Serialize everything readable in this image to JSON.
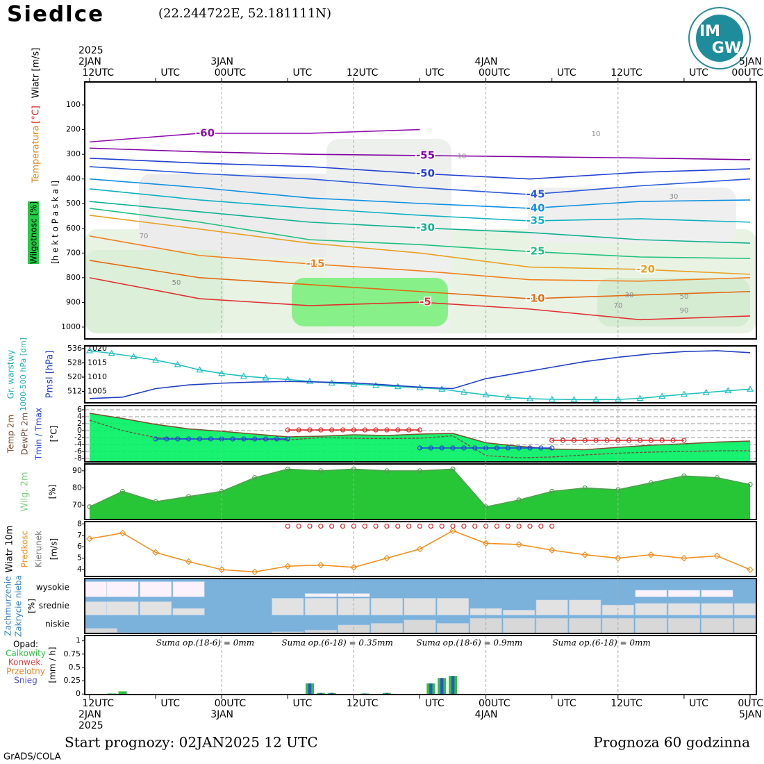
{
  "header": {
    "title": "Siedlce",
    "coords": "(22.244722E, 52.181111N)",
    "logo": [
      "IM",
      "GW"
    ]
  },
  "top_axis": [
    {
      "hour": 0,
      "labels": [
        "2025",
        "2JAN",
        "12UTC"
      ]
    },
    {
      "hour": 6,
      "labels": [
        "UTC"
      ]
    },
    {
      "hour": 12,
      "labels": [
        "3JAN",
        "00UTC"
      ]
    },
    {
      "hour": 18,
      "labels": [
        "UTC"
      ]
    },
    {
      "hour": 24,
      "labels": [
        "12UTC"
      ]
    },
    {
      "hour": 30,
      "labels": [
        "UTC"
      ]
    },
    {
      "hour": 36,
      "labels": [
        "4JAN",
        "00UTC"
      ]
    },
    {
      "hour": 42,
      "labels": [
        "UTC"
      ]
    },
    {
      "hour": 48,
      "labels": [
        "12UTC"
      ]
    },
    {
      "hour": 54,
      "labels": [
        "UTC"
      ]
    },
    {
      "hour": 60,
      "labels": [
        "5JAN",
        "00UTC"
      ]
    }
  ],
  "bottom_axis": [
    {
      "hour": 0,
      "labels": [
        "12UTC",
        "2JAN",
        "2025"
      ]
    },
    {
      "hour": 6,
      "labels": [
        "UTC"
      ]
    },
    {
      "hour": 12,
      "labels": [
        "00UTC",
        "3JAN"
      ]
    },
    {
      "hour": 18,
      "labels": [
        "UTC"
      ]
    },
    {
      "hour": 24,
      "labels": [
        "12UTC"
      ]
    },
    {
      "hour": 30,
      "labels": [
        "UTC"
      ]
    },
    {
      "hour": 36,
      "labels": [
        "00UTC",
        "4JAN"
      ]
    },
    {
      "hour": 42,
      "labels": [
        "UTC"
      ]
    },
    {
      "hour": 48,
      "labels": [
        "12UTC"
      ]
    },
    {
      "hour": 54,
      "labels": [
        "UTC"
      ]
    },
    {
      "hour": 60,
      "labels": [
        "0UTC",
        "5JAN"
      ]
    }
  ],
  "chart_data": [
    {
      "type": "contour",
      "labels": [
        "Wiatr [m/s]",
        "[°C]",
        "Temperatura",
        "Wilgotnosc [%]",
        "[h e k t o P a s k a l]"
      ],
      "ylim": [
        1048,
        7
      ],
      "yticks": [
        100,
        200,
        300,
        400,
        500,
        600,
        700,
        800,
        900,
        1000
      ],
      "x": [
        0,
        10,
        20,
        30,
        40,
        50,
        60
      ],
      "series": [
        {
          "name": "-60",
          "color": "#9010b0",
          "values": [
            250,
            215,
            215,
            200,
            null,
            null,
            null
          ]
        },
        {
          "name": "-55",
          "color": "#8000a0",
          "values": [
            275,
            290,
            300,
            305,
            310,
            315,
            322
          ]
        },
        {
          "name": "-50",
          "color": "#2040d0",
          "values": [
            316,
            336,
            350,
            378,
            400,
            373,
            359
          ]
        },
        {
          "name": "-45",
          "color": "#2858d8",
          "values": [
            350,
            378,
            400,
            435,
            463,
            428,
            400
          ]
        },
        {
          "name": "-40",
          "color": "#1090e0",
          "values": [
            400,
            435,
            477,
            499,
            519,
            491,
            485
          ]
        },
        {
          "name": "-35",
          "color": "#10b0c0",
          "values": [
            440,
            485,
            519,
            547,
            570,
            561,
            575
          ]
        },
        {
          "name": "-30",
          "color": "#10b090",
          "values": [
            491,
            533,
            575,
            598,
            617,
            646,
            660
          ]
        },
        {
          "name": "-25",
          "color": "#20c080",
          "values": [
            519,
            575,
            646,
            666,
            694,
            716,
            722
          ]
        },
        {
          "name": "-20",
          "color": "#e8a020",
          "values": [
            547,
            603,
            660,
            700,
            757,
            766,
            786
          ]
        },
        {
          "name": "-15",
          "color": "#f08020",
          "values": [
            631,
            710,
            744,
            772,
            808,
            814,
            800
          ]
        },
        {
          "name": "-10",
          "color": "#e06a10",
          "values": [
            730,
            800,
            828,
            856,
            885,
            870,
            856
          ]
        },
        {
          "name": "-5",
          "color": "#e03030",
          "values": [
            800,
            885,
            913,
            899,
            927,
            970,
            955
          ]
        }
      ],
      "humidity_labels": [
        "70",
        "50",
        "10",
        "10",
        "30",
        "30",
        "50",
        "70",
        "90"
      ]
    },
    {
      "type": "line",
      "labels": [
        "Gr. warstwy",
        "1000-500 hPa [dm]",
        "Pmsl [hPa]"
      ],
      "ylim": [
        505.5,
        537.5
      ],
      "yticks": [
        512,
        520,
        528,
        536
      ],
      "y2lim": [
        1001,
        1021
      ],
      "y2ticks": [
        1005,
        1010,
        1015,
        1020
      ],
      "x": [
        0,
        3,
        6,
        9,
        12,
        15,
        18,
        21,
        24,
        27,
        30,
        33,
        36,
        39,
        42,
        45,
        48,
        51,
        54,
        57,
        60
      ],
      "series": [
        {
          "color": "#20c0c0",
          "marker": "triangle",
          "x": [
            0,
            2,
            4,
            6,
            8,
            10,
            12,
            14,
            16,
            18,
            20,
            22,
            24,
            26,
            28,
            30,
            32,
            34,
            36,
            38,
            40,
            42,
            44,
            46,
            48,
            50,
            52,
            54,
            56,
            58,
            60
          ],
          "values": [
            534.8,
            533.3,
            531.5,
            529.5,
            527,
            524,
            522,
            520.5,
            519.5,
            518.6,
            517.6,
            516.6,
            516,
            515.3,
            514.6,
            514,
            513.2,
            511.5,
            510,
            508.6,
            507.8,
            507.5,
            507.3,
            507.3,
            507.4,
            508,
            509.2,
            510.3,
            511.3,
            512.3,
            513.2
          ]
        },
        {
          "color": "#2040c0",
          "axis": "y2",
          "values": [
            1002.5,
            1003,
            1006,
            1007.3,
            1007.9,
            1008.3,
            1008.5,
            1008.3,
            1008,
            1007.3,
            1006.5,
            1006,
            1009.5,
            1011.5,
            1013.5,
            1015.5,
            1017,
            1018.2,
            1019,
            1019.3,
            1018.6
          ]
        }
      ]
    },
    {
      "type": "line",
      "labels": [
        "Temp 2m",
        "DewPt 2m",
        "Tmin / Tmax",
        "[°C]"
      ],
      "ylim": [
        -9,
        7.2
      ],
      "yticks": [
        6,
        4,
        2,
        0,
        -2,
        -4,
        -6,
        -8
      ],
      "grid": true,
      "x": [
        0,
        3,
        6,
        9,
        12,
        15,
        18,
        21,
        24,
        27,
        30,
        33,
        36,
        39,
        42,
        45,
        48,
        51,
        54,
        57,
        60
      ],
      "series": [
        {
          "color": "#7a5030",
          "fill": "#00f060",
          "values": [
            5,
            3.5,
            1.8,
            0.5,
            -0.2,
            -1,
            -1.8,
            -1.6,
            -1.2,
            -1.4,
            -1,
            -0.8,
            -3.5,
            -4.5,
            -5.3,
            -5.5,
            -4.8,
            -4.2,
            -3.8,
            -3.3,
            -3
          ]
        },
        {
          "color": "#705040",
          "dash": true,
          "values": [
            3,
            0,
            -2,
            -2.4,
            -2.5,
            -2.6,
            -2.7,
            -2,
            -2.2,
            -2.3,
            -2.2,
            -1.5,
            -7.2,
            -7.8,
            -7.6,
            -7,
            -6.5,
            -6.2,
            -6,
            -5.8,
            -5.8
          ]
        },
        {
          "color": "#e02020",
          "marker": "circle",
          "x": [
            18,
            19,
            20,
            21,
            22,
            23,
            24,
            25,
            26,
            27,
            28,
            29,
            30
          ],
          "values": [
            0.2,
            0.2,
            0.2,
            0.2,
            0.2,
            0.2,
            0.2,
            0.2,
            0.2,
            0.2,
            0.2,
            0.2,
            0.2
          ]
        },
        {
          "color": "#e02020",
          "marker": "circle",
          "x": [
            42,
            43,
            44,
            45,
            46,
            47,
            48,
            49,
            50,
            51,
            52,
            53,
            54
          ],
          "values": [
            -2.8,
            -2.8,
            -2.8,
            -2.8,
            -2.8,
            -2.8,
            -2.8,
            -2.8,
            -2.8,
            -2.8,
            -2.8,
            -2.8,
            -2.8
          ]
        },
        {
          "color": "#2040e0",
          "marker": "circle",
          "x": [
            6,
            7,
            8,
            9,
            10,
            11,
            12,
            13,
            14,
            15,
            16,
            17,
            18
          ],
          "values": [
            -2.4,
            -2.4,
            -2.4,
            -2.4,
            -2.4,
            -2.4,
            -2.4,
            -2.4,
            -2.4,
            -2.4,
            -2.4,
            -2.4,
            -2.4
          ]
        },
        {
          "color": "#2040e0",
          "marker": "circle",
          "x": [
            30,
            31,
            32,
            33,
            34,
            35,
            36,
            37,
            38,
            39,
            40,
            41,
            42
          ],
          "values": [
            -5,
            -5,
            -5,
            -5,
            -5,
            -5,
            -5,
            -5,
            -5,
            -5,
            -5,
            -5,
            -5
          ]
        }
      ]
    },
    {
      "type": "line",
      "labels": [
        "Wilg. 2m",
        "[%]"
      ],
      "ylim": [
        61.6,
        94
      ],
      "yticks": [
        70,
        80,
        90
      ],
      "x": [
        0,
        3,
        6,
        9,
        12,
        15,
        18,
        21,
        24,
        27,
        30,
        33,
        36,
        39,
        42,
        45,
        48,
        51,
        54,
        57,
        60
      ],
      "series": [
        {
          "color": "#50a050",
          "fill": "#10c020",
          "marker": "circle",
          "values": [
            69,
            78,
            72,
            75,
            78,
            86,
            91,
            90,
            91,
            90,
            90,
            91,
            69,
            73,
            78,
            80,
            79,
            83,
            87,
            86,
            82
          ]
        }
      ]
    },
    {
      "type": "line",
      "labels": [
        "Wiatr 10m",
        "Predkosc",
        "Kierunek",
        "[m/s]"
      ],
      "ylim": [
        3.4,
        8.2
      ],
      "yticks": [
        4,
        5,
        6,
        7,
        8
      ],
      "x": [
        0,
        3,
        6,
        9,
        12,
        15,
        18,
        21,
        24,
        27,
        30,
        33,
        36,
        39,
        42,
        45,
        48,
        51,
        54,
        57,
        60
      ],
      "series": [
        {
          "color": "#f09020",
          "marker": "diamond",
          "values": [
            6.7,
            7.2,
            5.5,
            4.7,
            4,
            3.8,
            4.3,
            4.4,
            4.2,
            5,
            5.8,
            7.4,
            6.3,
            6.2,
            5.7,
            5.3,
            5,
            5.3,
            5,
            5.2,
            4
          ]
        },
        {
          "color": "#e02020",
          "marker": "circle",
          "noline": true,
          "x": [
            18,
            19,
            20,
            21,
            22,
            23,
            24,
            25,
            26,
            27,
            28,
            29,
            30,
            31,
            32,
            33,
            34,
            35,
            36,
            37,
            38,
            39,
            40,
            41,
            42
          ],
          "values": [
            7.8,
            7.8,
            7.8,
            7.8,
            7.8,
            7.8,
            7.8,
            7.8,
            7.8,
            7.8,
            7.8,
            7.8,
            7.8,
            7.8,
            7.8,
            7.8,
            7.8,
            7.8,
            7.8,
            7.8,
            7.8,
            7.8,
            7.8,
            7.8,
            7.8
          ]
        }
      ]
    },
    {
      "type": "cloud",
      "labels": [
        "Zachmurzenie",
        "Zakrycie nieba",
        "[%]"
      ],
      "categories": [
        "wysokie",
        "srednie",
        "niskie"
      ],
      "ylim": [
        0,
        100
      ],
      "x": [
        0,
        3,
        6,
        9,
        12,
        15,
        18,
        21,
        24,
        27,
        30,
        33,
        36,
        39,
        42,
        45,
        48,
        51,
        54,
        57,
        60
      ],
      "series": [
        {
          "color": "#fbf2fb",
          "values": [
            90,
            90,
            90,
            90,
            0,
            0,
            0,
            20,
            20,
            0,
            0,
            0,
            0,
            0,
            0,
            0,
            0,
            40,
            40,
            40,
            0
          ]
        },
        {
          "color": "#e2e2e2",
          "values": [
            80,
            80,
            80,
            40,
            0,
            0,
            100,
            100,
            100,
            100,
            100,
            100,
            40,
            30,
            90,
            90,
            60,
            70,
            70,
            70,
            70
          ]
        },
        {
          "color": "#d8d8d8",
          "values": [
            30,
            5,
            5,
            5,
            5,
            5,
            10,
            20,
            50,
            60,
            80,
            60,
            90,
            90,
            90,
            90,
            90,
            90,
            90,
            90,
            90
          ]
        }
      ]
    },
    {
      "type": "bar",
      "labels": [
        "Opad:",
        "Calkowity",
        "Konwek.",
        "Przelotny",
        "Snieg",
        "[mm / h]"
      ],
      "ylim": [
        -0.01,
        1.1
      ],
      "yticks": [
        0,
        0.25,
        0.5,
        0.75,
        1
      ],
      "x": [
        2,
        3,
        20,
        21,
        22,
        25,
        27,
        31,
        32,
        33
      ],
      "series": [
        {
          "color": "#30c040",
          "values": [
            0.01,
            0.05,
            0.2,
            0.02,
            0.02,
            0.01,
            0.02,
            0.2,
            0.3,
            0.34
          ]
        },
        {
          "color": "#3050d0",
          "values": [
            0,
            0,
            0.2,
            0.02,
            0.02,
            0.01,
            0.02,
            0.2,
            0.3,
            0.34
          ]
        }
      ],
      "sums": [
        "Suma op.(18-6) = 0mm",
        "Suma op.(6-18) = 0.35mm",
        "Suma op.(18-6) = 0.9mm",
        "Suma op.(6-18) = 0mm"
      ]
    }
  ],
  "footer": {
    "start": "Start prognozy: 02JAN2025 12 UTC",
    "length": "Prognoza 60 godzinna",
    "credit": "GrADS/COLA"
  }
}
